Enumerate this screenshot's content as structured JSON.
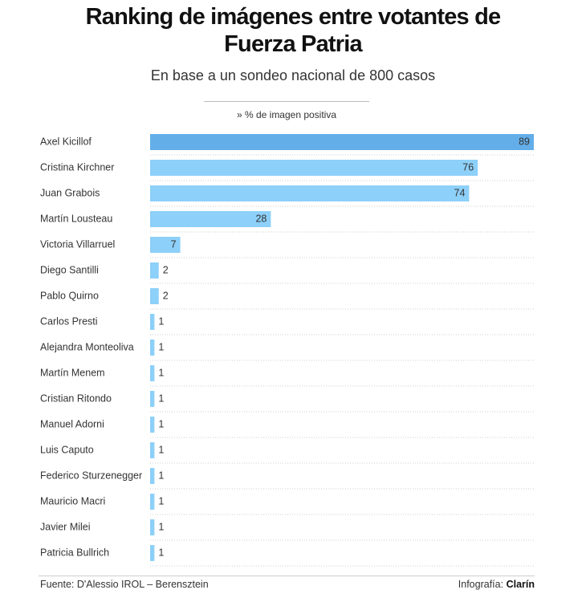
{
  "chart_data": {
    "type": "bar",
    "orientation": "horizontal",
    "title": "Ranking de imágenes entre votantes de Fuerza Patria",
    "subtitle": "En base a un sondeo nacional de 800 casos",
    "legend_label": "» % de imagen positiva",
    "categories": [
      "Axel Kicillof",
      "Cristina Kirchner",
      "Juan Grabois",
      "Martín Lousteau",
      "Victoria Villarruel",
      "Diego Santilli",
      "Pablo Quirno",
      "Carlos Presti",
      "Alejandra Monteoliva",
      "Martín Menem",
      "Cristian Ritondo",
      "Manuel Adorni",
      "Luis Caputo",
      "Federico Sturzenegger",
      "Mauricio Macri",
      "Javier Milei",
      "Patricia Bullrich"
    ],
    "values": [
      89,
      76,
      74,
      28,
      7,
      2,
      2,
      1,
      1,
      1,
      1,
      1,
      1,
      1,
      1,
      1,
      1
    ],
    "colors": [
      "#63aee9",
      "#8dd0f9",
      "#8dd0f9",
      "#8dd0f9",
      "#8dd0f9",
      "#8dd0f9",
      "#8dd0f9",
      "#8dd0f9",
      "#8dd0f9",
      "#8dd0f9",
      "#8dd0f9",
      "#8dd0f9",
      "#8dd0f9",
      "#8dd0f9",
      "#8dd0f9",
      "#8dd0f9",
      "#8dd0f9"
    ],
    "source": "Fuente: D'Alessio IROL – Berensztein",
    "credit": {
      "label": "Infografía:",
      "brand": "Clarín"
    }
  }
}
